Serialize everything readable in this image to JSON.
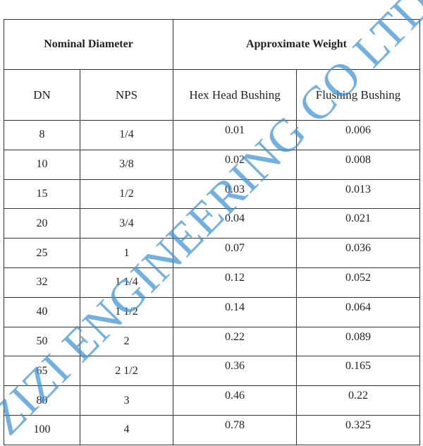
{
  "table": {
    "group_headers": [
      "Nominal Diameter",
      "Approximate Weight"
    ],
    "column_headers": [
      "DN",
      "NPS",
      "Hex Head Bushing",
      "Flushing Bushing"
    ],
    "rows": [
      [
        "8",
        "1/4",
        "0.01",
        "0.006"
      ],
      [
        "10",
        "3/8",
        "0.02",
        "0.008"
      ],
      [
        "15",
        "1/2",
        "0.03",
        "0.013"
      ],
      [
        "20",
        "3/4",
        "0.04",
        "0.021"
      ],
      [
        "25",
        "1",
        "0.07",
        "0.036"
      ],
      [
        "32",
        "1 1/4",
        "0.12",
        "0.052"
      ],
      [
        "40",
        "1 1/2",
        "0.14",
        "0.064"
      ],
      [
        "50",
        "2",
        "0.22",
        "0.089"
      ],
      [
        "65",
        "2 1/2",
        "0.36",
        "0.165"
      ],
      [
        "80",
        "3",
        "0.46",
        "0.22"
      ],
      [
        "100",
        "4",
        "0.78",
        "0.325"
      ]
    ]
  },
  "watermark": {
    "text": "ZIZI ENGINEERING CO LTD",
    "color": "#3c91d2"
  }
}
